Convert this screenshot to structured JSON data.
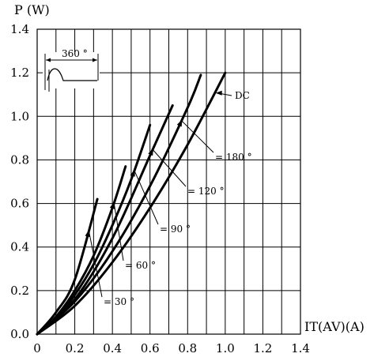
{
  "chart_data": {
    "type": "line",
    "ylabel": "P (W)",
    "xlabel": "IT(AV)(A)",
    "xlim": [
      0,
      1.4
    ],
    "ylim": [
      0,
      1.4
    ],
    "x_ticks": [
      "0",
      "0.2",
      "0.4",
      "0.6",
      "0.8",
      "1.0",
      "1.2",
      "1.4"
    ],
    "y_ticks": [
      "0.0",
      "0.2",
      "0.4",
      "0.6",
      "0.8",
      "1.0",
      "1.2",
      "1.4"
    ],
    "grid": true,
    "inset_label": "360 °",
    "series": [
      {
        "name": "= 30 °",
        "x": [
          0,
          0.1,
          0.2,
          0.32
        ],
        "y": [
          0,
          0.1,
          0.25,
          0.62
        ]
      },
      {
        "name": "= 60 °",
        "x": [
          0,
          0.1,
          0.2,
          0.3,
          0.4,
          0.47
        ],
        "y": [
          0,
          0.08,
          0.2,
          0.36,
          0.58,
          0.77
        ]
      },
      {
        "name": "= 90 °",
        "x": [
          0,
          0.1,
          0.2,
          0.3,
          0.4,
          0.5,
          0.6
        ],
        "y": [
          0,
          0.07,
          0.18,
          0.32,
          0.5,
          0.71,
          0.96
        ]
      },
      {
        "name": "= 120 °",
        "x": [
          0,
          0.2,
          0.4,
          0.6,
          0.72
        ],
        "y": [
          0,
          0.16,
          0.44,
          0.82,
          1.05
        ]
      },
      {
        "name": "= 180 °",
        "x": [
          0,
          0.2,
          0.4,
          0.6,
          0.8,
          0.87
        ],
        "y": [
          0,
          0.15,
          0.38,
          0.68,
          1.04,
          1.19
        ]
      },
      {
        "name": "DC",
        "x": [
          0,
          0.2,
          0.4,
          0.6,
          0.8,
          1.0
        ],
        "y": [
          0,
          0.13,
          0.33,
          0.58,
          0.87,
          1.2
        ]
      }
    ]
  }
}
